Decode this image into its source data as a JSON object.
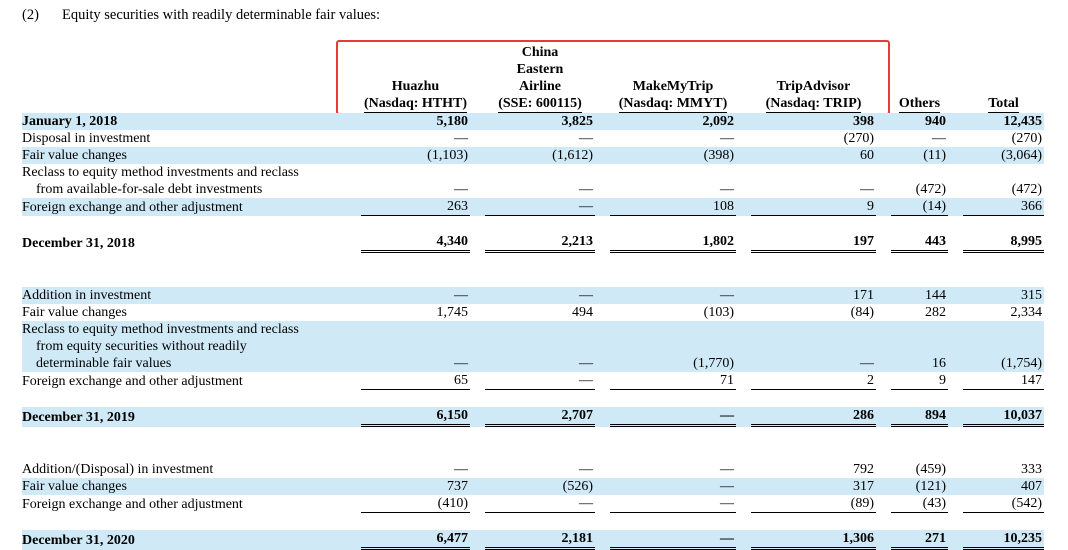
{
  "caption": {
    "number": "(2)",
    "title": "Equity securities with readily determinable fair values:"
  },
  "columns": [
    {
      "lines": [
        "Huazhu",
        "(Nasdaq: HTHT)"
      ]
    },
    {
      "lines": [
        "China",
        "Eastern",
        "Airline",
        "(SSE: 600115)"
      ]
    },
    {
      "lines": [
        "MakeMyTrip",
        "(Nasdaq: MMYT)"
      ]
    },
    {
      "lines": [
        "TripAdvisor",
        "(Nasdaq: TRIP)"
      ]
    },
    {
      "lines": [
        "Others"
      ]
    },
    {
      "lines": [
        "Total"
      ]
    }
  ],
  "rows": [
    {
      "label": "January 1, 2018",
      "values": [
        "5,180",
        "3,825",
        "2,092",
        "398",
        "940",
        "12,435"
      ]
    },
    {
      "label": "Disposal in investment",
      "values": [
        "—",
        "—",
        "—",
        "(270)",
        "—",
        "(270)"
      ]
    },
    {
      "label": "Fair value changes",
      "values": [
        "(1,103)",
        "(1,612)",
        "(398)",
        "60",
        "(11)",
        "(3,064)"
      ]
    },
    {
      "label": "Reclass to equity method investments and reclass",
      "values": [
        "",
        "",
        "",
        "",
        "",
        ""
      ]
    },
    {
      "label": "from available-for-sale debt investments",
      "values": [
        "—",
        "—",
        "—",
        "—",
        "(472)",
        "(472)"
      ]
    },
    {
      "label": "Foreign exchange and other adjustment",
      "values": [
        "263",
        "—",
        "108",
        "9",
        "(14)",
        "366"
      ]
    },
    {
      "label": "December 31, 2018",
      "values": [
        "4,340",
        "2,213",
        "1,802",
        "197",
        "443",
        "8,995"
      ]
    },
    {
      "label": "Addition in investment",
      "values": [
        "—",
        "—",
        "—",
        "171",
        "144",
        "315"
      ]
    },
    {
      "label": "Fair value changes",
      "values": [
        "1,745",
        "494",
        "(103)",
        "(84)",
        "282",
        "2,334"
      ]
    },
    {
      "label": "Reclass to equity method investments and reclass",
      "values": [
        "",
        "",
        "",
        "",
        "",
        ""
      ]
    },
    {
      "label": "from equity securities without readily",
      "values": [
        "",
        "",
        "",
        "",
        "",
        ""
      ]
    },
    {
      "label": "determinable fair values",
      "values": [
        "—",
        "—",
        "(1,770)",
        "—",
        "16",
        "(1,754)"
      ]
    },
    {
      "label": "Foreign exchange and other adjustment",
      "values": [
        "65",
        "—",
        "71",
        "2",
        "9",
        "147"
      ]
    },
    {
      "label": "December 31, 2019",
      "values": [
        "6,150",
        "2,707",
        "—",
        "286",
        "894",
        "10,037"
      ]
    },
    {
      "label": "Addition/(Disposal) in investment",
      "values": [
        "—",
        "—",
        "—",
        "792",
        "(459)",
        "333"
      ]
    },
    {
      "label": "Fair value changes",
      "values": [
        "737",
        "(526)",
        "—",
        "317",
        "(121)",
        "407"
      ]
    },
    {
      "label": "Foreign exchange and other adjustment",
      "values": [
        "(410)",
        "—",
        "—",
        "(89)",
        "(43)",
        "(542)"
      ]
    },
    {
      "label": "December 31, 2020",
      "values": [
        "6,477",
        "2,181",
        "—",
        "1,306",
        "271",
        "10,235"
      ]
    }
  ]
}
